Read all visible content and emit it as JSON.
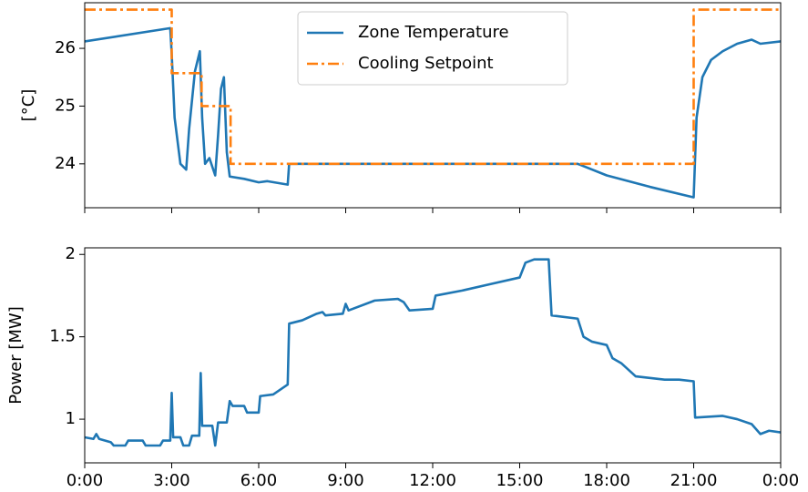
{
  "chart_data": [
    {
      "type": "line",
      "ylabel": "[°C]",
      "xlim": [
        0,
        24
      ],
      "ylim": [
        23.24,
        26.79
      ],
      "xticks": [
        0,
        3,
        6,
        9,
        12,
        15,
        18,
        21,
        24
      ],
      "show_xtick_labels": false,
      "yticks": [
        24,
        25,
        26
      ],
      "legend": "upper center",
      "series": [
        {
          "name": "Zone Temperature",
          "color": "#1f77b4",
          "linestyle": "solid",
          "x": [
            0,
            2.95,
            3.0,
            3.1,
            3.3,
            3.5,
            3.6,
            3.8,
            3.97,
            4.05,
            4.15,
            4.3,
            4.5,
            4.6,
            4.7,
            4.8,
            4.9,
            5.0,
            5.5,
            6.0,
            6.3,
            7.0,
            7.05,
            17.0,
            18.0,
            19.5,
            21.0,
            21.1,
            21.3,
            21.6,
            22.0,
            22.5,
            23.0,
            23.3,
            24
          ],
          "values": [
            26.12,
            26.35,
            25.9,
            24.8,
            24.0,
            23.9,
            24.6,
            25.6,
            25.95,
            24.8,
            24.0,
            24.1,
            23.8,
            24.5,
            25.3,
            25.5,
            24.2,
            23.78,
            23.74,
            23.68,
            23.7,
            23.64,
            24.0,
            24.0,
            23.8,
            23.6,
            23.42,
            24.8,
            25.5,
            25.8,
            25.95,
            26.08,
            26.15,
            26.08,
            26.12
          ]
        },
        {
          "name": "Cooling Setpoint",
          "color": "#ff7f0e",
          "linestyle": "dashdot",
          "x": [
            0,
            3,
            3,
            4.03,
            4.03,
            5.03,
            5.03,
            21,
            21,
            24
          ],
          "values": [
            26.67,
            26.67,
            25.57,
            25.57,
            25.0,
            25.0,
            24.0,
            24.0,
            26.67,
            26.67
          ]
        }
      ]
    },
    {
      "type": "line",
      "ylabel": "Power [MW]",
      "xlim": [
        0,
        24
      ],
      "ylim": [
        0.735,
        2.04
      ],
      "xticks": [
        {
          "value": 0,
          "label": "0:00"
        },
        {
          "value": 3,
          "label": "3:00"
        },
        {
          "value": 6,
          "label": "6:00"
        },
        {
          "value": 9,
          "label": "9:00"
        },
        {
          "value": 12,
          "label": "12:00"
        },
        {
          "value": 15,
          "label": "15:00"
        },
        {
          "value": 18,
          "label": "18:00"
        },
        {
          "value": 21,
          "label": "21:00"
        },
        {
          "value": 24,
          "label": "0:00"
        }
      ],
      "show_xtick_labels": true,
      "yticks": [
        1.0,
        1.5,
        2.0
      ],
      "series": [
        {
          "color": "#1f77b4",
          "linestyle": "solid",
          "x": [
            0,
            0.3,
            0.4,
            0.5,
            0.9,
            1.0,
            1.4,
            1.5,
            2.0,
            2.1,
            2.6,
            2.7,
            2.95,
            3.0,
            3.05,
            3.3,
            3.4,
            3.6,
            3.7,
            3.95,
            4.0,
            4.05,
            4.4,
            4.5,
            4.6,
            4.9,
            5.0,
            5.1,
            5.5,
            5.6,
            6.0,
            6.05,
            6.5,
            7.0,
            7.05,
            7.5,
            8.0,
            8.2,
            8.3,
            8.9,
            9.0,
            9.1,
            10.0,
            10.8,
            11.0,
            11.2,
            12.0,
            12.1,
            13.0,
            14.0,
            15.0,
            15.2,
            15.5,
            16.0,
            16.1,
            17.0,
            17.2,
            17.5,
            18.0,
            18.2,
            18.5,
            19.0,
            20.0,
            20.5,
            21.0,
            21.05,
            22.0,
            22.5,
            23.0,
            23.3,
            23.6,
            24.0
          ],
          "values": [
            0.89,
            0.88,
            0.91,
            0.88,
            0.86,
            0.84,
            0.84,
            0.87,
            0.87,
            0.84,
            0.84,
            0.87,
            0.87,
            1.16,
            0.89,
            0.89,
            0.84,
            0.84,
            0.9,
            0.9,
            1.28,
            0.96,
            0.96,
            0.84,
            0.98,
            0.98,
            1.11,
            1.08,
            1.08,
            1.04,
            1.04,
            1.14,
            1.15,
            1.21,
            1.58,
            1.6,
            1.64,
            1.65,
            1.63,
            1.64,
            1.7,
            1.66,
            1.72,
            1.73,
            1.71,
            1.66,
            1.67,
            1.75,
            1.78,
            1.82,
            1.86,
            1.95,
            1.97,
            1.97,
            1.63,
            1.61,
            1.5,
            1.47,
            1.45,
            1.37,
            1.34,
            1.26,
            1.24,
            1.24,
            1.23,
            1.01,
            1.02,
            1.0,
            0.97,
            0.91,
            0.93,
            0.92
          ]
        }
      ]
    }
  ]
}
